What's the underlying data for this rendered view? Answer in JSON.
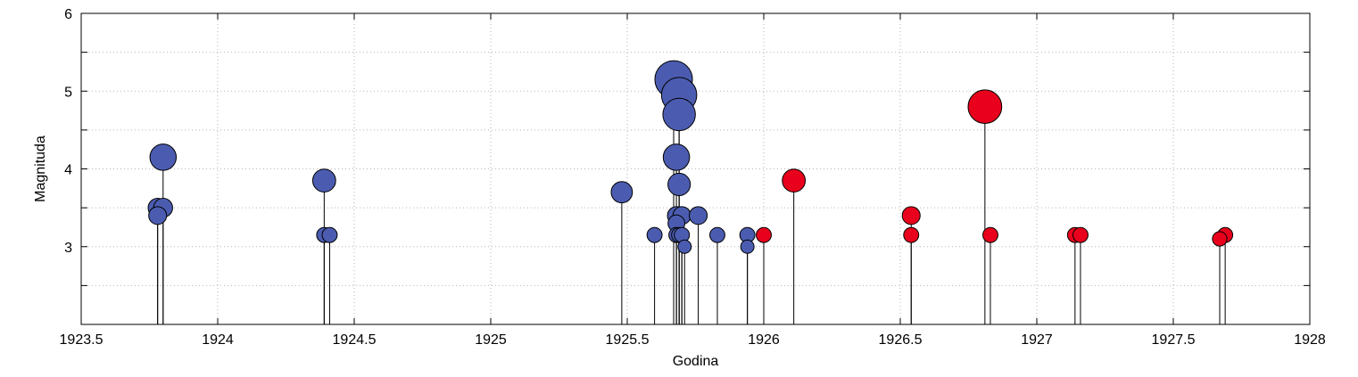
{
  "chart_data": {
    "type": "scatter",
    "title": "",
    "xlabel": "Godina",
    "ylabel": "Magnituda",
    "xlim": [
      1923.5,
      1928
    ],
    "ylim": [
      2,
      6
    ],
    "x_ticks": [
      1923.5,
      1924,
      1924.5,
      1925,
      1925.5,
      1926,
      1926.5,
      1927,
      1927.5,
      1928
    ],
    "x_tick_labels": [
      "1923.5",
      "1924",
      "1924.5",
      "1925",
      "1925.5",
      "1926",
      "1926.5",
      "1927",
      "1927.5",
      "1928"
    ],
    "y_ticks": [
      3,
      4,
      5,
      6
    ],
    "y_tick_labels": [
      "3",
      "4",
      "5",
      "6"
    ],
    "grid": true,
    "marker_size_encodes": "magnitude",
    "stems": true,
    "series": [
      {
        "color": "#4b5cb0",
        "points": [
          {
            "x": 1923.78,
            "y": 3.5
          },
          {
            "x": 1923.78,
            "y": 3.4
          },
          {
            "x": 1923.8,
            "y": 4.15
          },
          {
            "x": 1923.8,
            "y": 3.5
          },
          {
            "x": 1924.39,
            "y": 3.85
          },
          {
            "x": 1924.39,
            "y": 3.15
          },
          {
            "x": 1924.41,
            "y": 3.15
          },
          {
            "x": 1925.48,
            "y": 3.7
          },
          {
            "x": 1925.6,
            "y": 3.15
          },
          {
            "x": 1925.67,
            "y": 5.15
          },
          {
            "x": 1925.69,
            "y": 4.95
          },
          {
            "x": 1925.69,
            "y": 4.7
          },
          {
            "x": 1925.68,
            "y": 4.15
          },
          {
            "x": 1925.69,
            "y": 3.8
          },
          {
            "x": 1925.68,
            "y": 3.4
          },
          {
            "x": 1925.68,
            "y": 3.3
          },
          {
            "x": 1925.68,
            "y": 3.15
          },
          {
            "x": 1925.69,
            "y": 3.15
          },
          {
            "x": 1925.7,
            "y": 3.15
          },
          {
            "x": 1925.7,
            "y": 3.4
          },
          {
            "x": 1925.71,
            "y": 3.0
          },
          {
            "x": 1925.76,
            "y": 3.4
          },
          {
            "x": 1925.83,
            "y": 3.15
          },
          {
            "x": 1925.94,
            "y": 3.15
          },
          {
            "x": 1925.94,
            "y": 3.0
          }
        ]
      },
      {
        "color": "#e8001c",
        "points": [
          {
            "x": 1926.0,
            "y": 3.15
          },
          {
            "x": 1926.11,
            "y": 3.85
          },
          {
            "x": 1926.54,
            "y": 3.4
          },
          {
            "x": 1926.54,
            "y": 3.15
          },
          {
            "x": 1926.81,
            "y": 4.8
          },
          {
            "x": 1926.83,
            "y": 3.15
          },
          {
            "x": 1927.14,
            "y": 3.15
          },
          {
            "x": 1927.16,
            "y": 3.15
          },
          {
            "x": 1927.67,
            "y": 3.1
          },
          {
            "x": 1927.69,
            "y": 3.15
          }
        ]
      }
    ]
  }
}
